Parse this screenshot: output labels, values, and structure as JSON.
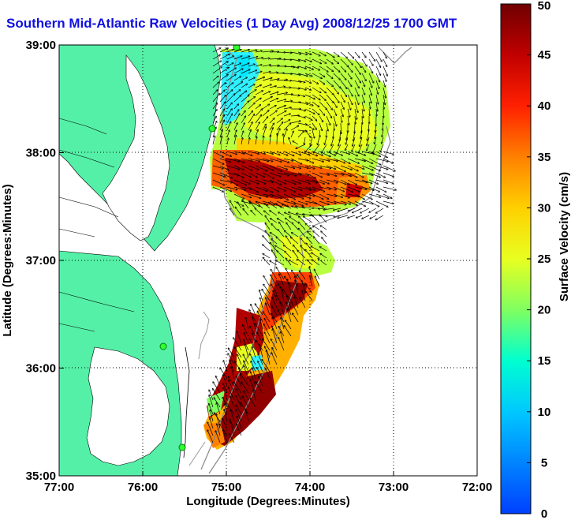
{
  "title": "Southern Mid-Atlantic Raw Velocities (1 Day Avg) 2008/12/25 1700 GMT",
  "map": {
    "xlabel": "Longitude (Degrees:Minutes)",
    "ylabel": "Latitude (Degrees:Minutes)",
    "x_ticks": [
      "77:00",
      "76:00",
      "75:00",
      "74:00",
      "73:00",
      "72:00"
    ],
    "y_ticks": [
      "39:00",
      "38:00",
      "37:00",
      "36:00",
      "35:00"
    ],
    "lon_range": [
      -77,
      -72
    ],
    "lat_range": [
      35,
      39
    ],
    "grid": "dotted",
    "land_color": "#55f0a8"
  },
  "colorbar": {
    "label": "Surface Velocity (cm/s)",
    "ticks": [
      "50",
      "45",
      "40",
      "35",
      "30",
      "25",
      "20",
      "15",
      "10",
      "5",
      "0"
    ],
    "range": [
      0,
      50
    ],
    "colors": [
      "#0040ff",
      "#00c8ff",
      "#00ffd0",
      "#80ff60",
      "#e8ff20",
      "#ffd000",
      "#ff8000",
      "#ff2000",
      "#c00000",
      "#700000"
    ]
  }
}
